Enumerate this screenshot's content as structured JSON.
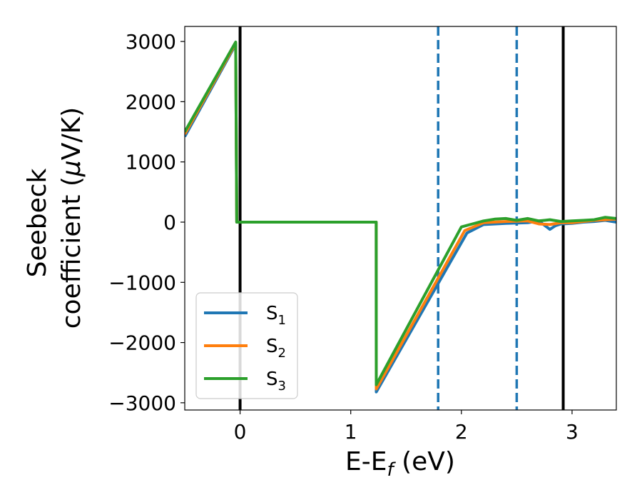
{
  "chart_data": {
    "type": "line",
    "xlabel": "E-E",
    "xlabel_sub": "f",
    "xlabel_unit": " (eV)",
    "ylabel_line1": "Seebeck",
    "ylabel_line2": "coefficient  (",
    "ylabel_mu": "μ",
    "ylabel_unit": "V/K)",
    "xlim": [
      -0.5,
      3.4
    ],
    "ylim": [
      -3120,
      3250
    ],
    "xticks": [
      0,
      1,
      2,
      3
    ],
    "xtick_labels": [
      "0",
      "1",
      "2",
      "3"
    ],
    "yticks": [
      3000,
      2000,
      1000,
      0,
      -1000,
      -2000,
      -3000
    ],
    "ytick_labels": [
      "3000",
      "2000",
      "1000",
      "0",
      "−1000",
      "−2000",
      "−3000"
    ],
    "grid": false,
    "legend_position": "lower-left",
    "vlines": [
      {
        "x": 0.0,
        "style": "solid",
        "color": "#000000"
      },
      {
        "x": 2.92,
        "style": "solid",
        "color": "#000000"
      },
      {
        "x": 1.79,
        "style": "dashed",
        "color": "#1f77b4"
      },
      {
        "x": 2.5,
        "style": "dashed",
        "color": "#1f77b4"
      }
    ],
    "series": [
      {
        "name": "S",
        "sub": "1",
        "color": "#1f77b4",
        "x": [
          -0.5,
          -0.04,
          -0.03,
          1.23,
          1.231,
          2.05,
          2.2,
          2.4,
          2.6,
          2.7,
          2.8,
          2.85,
          2.9,
          3.0,
          3.1,
          3.2,
          3.3,
          3.4
        ],
        "y": [
          1420,
          2950,
          0,
          0,
          -2820,
          -180,
          -40,
          -20,
          -10,
          20,
          -120,
          -60,
          -30,
          -20,
          0,
          10,
          30,
          0
        ]
      },
      {
        "name": "S",
        "sub": "2",
        "color": "#ff7f0e",
        "x": [
          -0.5,
          -0.04,
          -0.03,
          1.23,
          1.231,
          2.03,
          2.2,
          2.4,
          2.6,
          2.7,
          2.8,
          2.9,
          3.0,
          3.1,
          3.2,
          3.3,
          3.4
        ],
        "y": [
          1460,
          2970,
          0,
          0,
          -2770,
          -140,
          -10,
          10,
          20,
          -30,
          -40,
          -10,
          -10,
          10,
          30,
          40,
          50
        ]
      },
      {
        "name": "S",
        "sub": "3",
        "color": "#2ca02c",
        "x": [
          -0.5,
          -0.04,
          -0.03,
          1.23,
          1.231,
          2.0,
          2.1,
          2.2,
          2.3,
          2.4,
          2.5,
          2.6,
          2.7,
          2.8,
          2.9,
          3.0,
          3.1,
          3.2,
          3.3,
          3.4
        ],
        "y": [
          1500,
          2990,
          0,
          0,
          -2700,
          -80,
          -30,
          20,
          50,
          60,
          30,
          60,
          20,
          40,
          10,
          20,
          30,
          40,
          80,
          60
        ]
      }
    ]
  }
}
